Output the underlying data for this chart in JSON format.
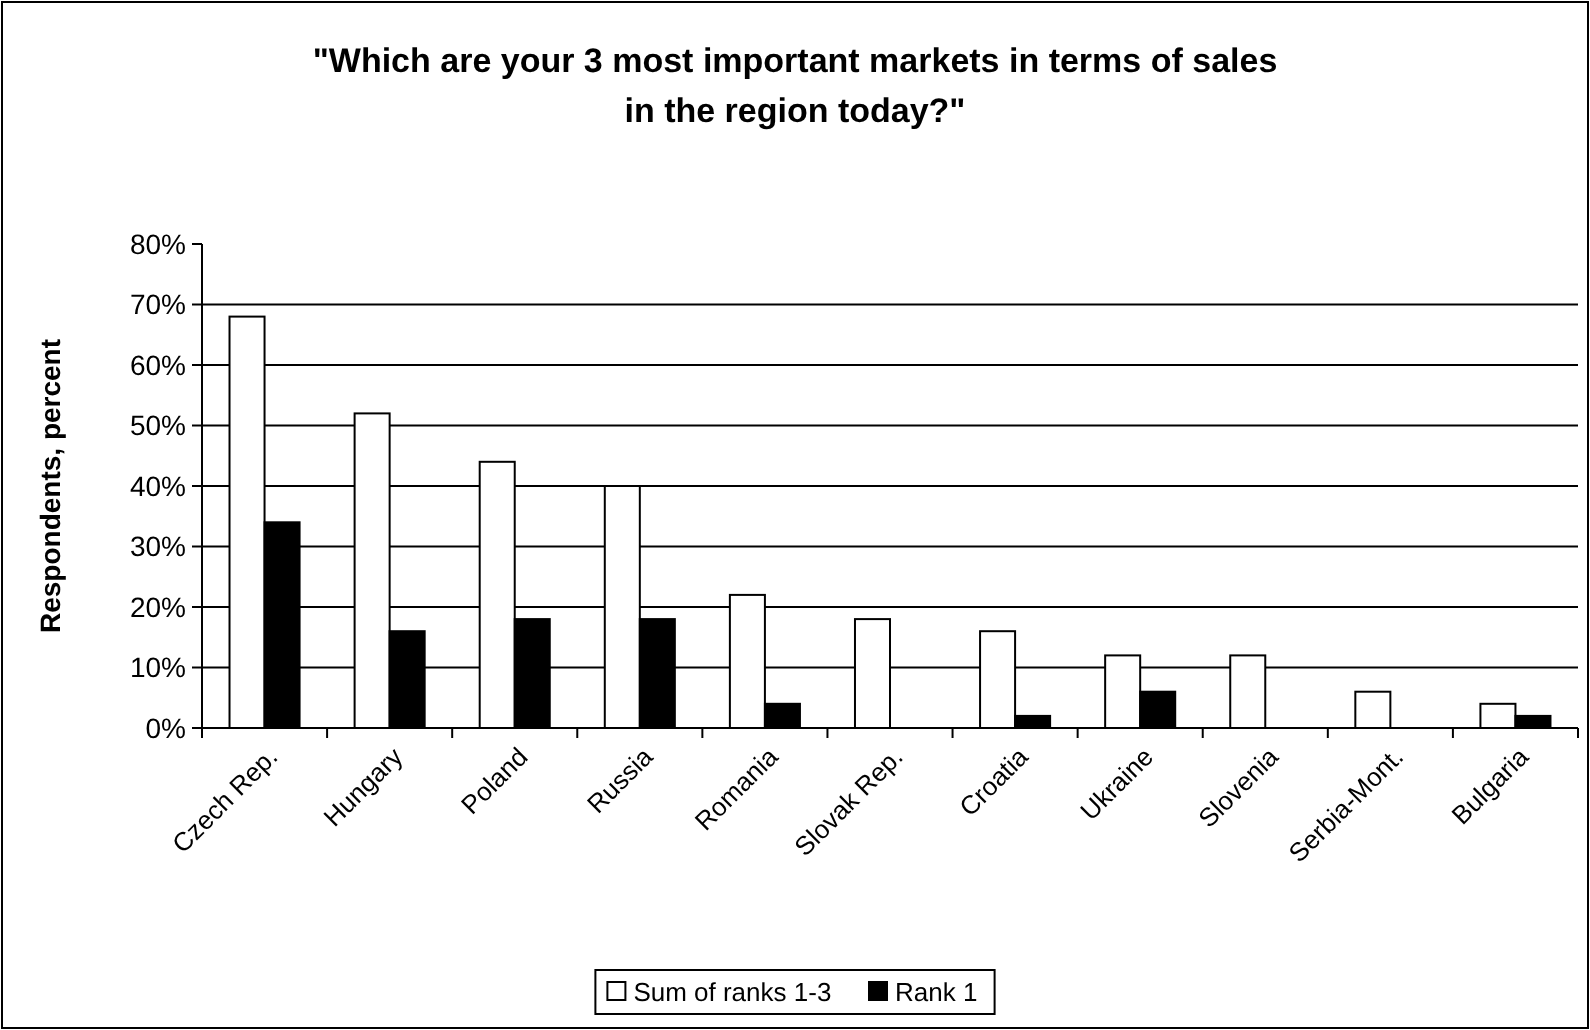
{
  "chart_data": {
    "type": "bar",
    "title": "\"Which are your 3 most important markets in terms of sales in the region today?\"",
    "ylabel": "Respondents, percent",
    "categories": [
      "Czech Rep.",
      "Hungary",
      "Poland",
      "Russia",
      "Romania",
      "Slovak Rep.",
      "Croatia",
      "Ukraine",
      "Slovenia",
      "Serbia-Mont.",
      "Bulgaria"
    ],
    "series": [
      {
        "name": "Sum of ranks 1-3",
        "color": "#ffffff",
        "values": [
          68,
          52,
          44,
          40,
          22,
          18,
          16,
          12,
          12,
          6,
          4
        ]
      },
      {
        "name": "Rank 1",
        "color": "#000000",
        "values": [
          34,
          16,
          18,
          18,
          4,
          0,
          2,
          6,
          0,
          0,
          2
        ]
      }
    ],
    "ylim": [
      0,
      80
    ],
    "yticks": [
      {
        "value": 0,
        "label": "0%"
      },
      {
        "value": 10,
        "label": "10%"
      },
      {
        "value": 20,
        "label": "20%"
      },
      {
        "value": 30,
        "label": "30%"
      },
      {
        "value": 40,
        "label": "40%"
      },
      {
        "value": 50,
        "label": "50%"
      },
      {
        "value": 60,
        "label": "60%"
      },
      {
        "value": 70,
        "label": "70%"
      },
      {
        "value": 80,
        "label": "80%"
      }
    ],
    "grid": "y",
    "legend": "bottom"
  }
}
